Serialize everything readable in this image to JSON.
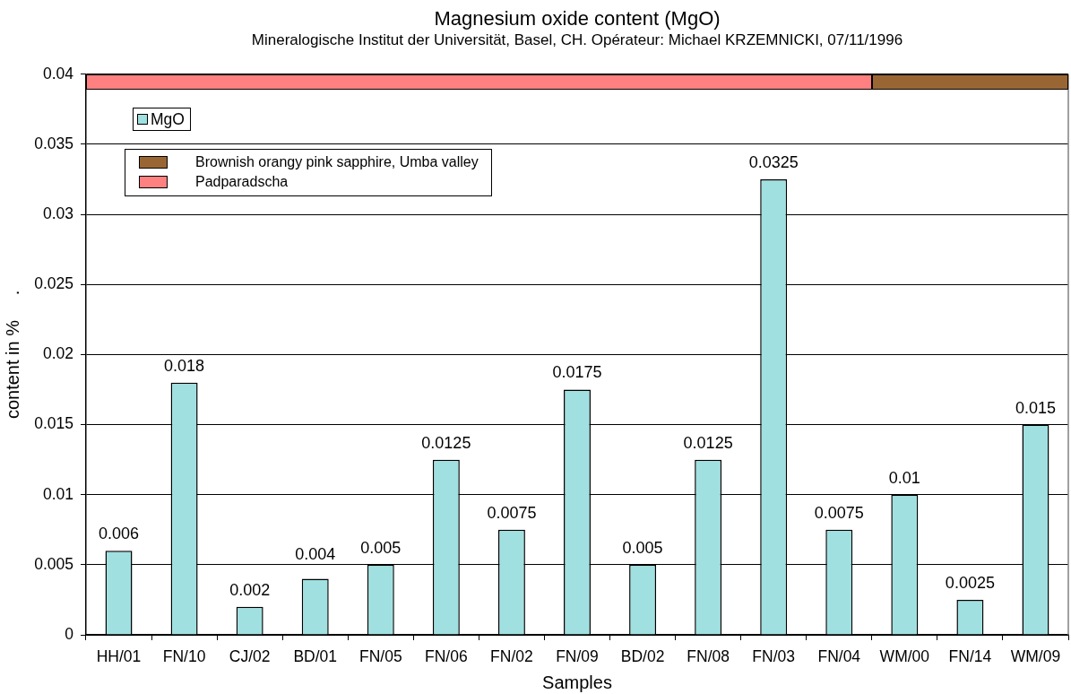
{
  "chart_data": {
    "type": "bar",
    "title": "Magnesium oxide content (MgO)",
    "subtitle": "Mineralogische Institut der Universität, Basel, CH. Opérateur: Michael KRZEMNICKI, 07/11/1996",
    "xlabel": "Samples",
    "ylabel": "content in %     .",
    "categories": [
      "HH/01",
      "FN/10",
      "CJ/02",
      "BD/01",
      "FN/05",
      "FN/06",
      "FN/02",
      "FN/09",
      "BD/02",
      "FN/08",
      "FN/03",
      "FN/04",
      "WM/00",
      "FN/14",
      "WM/09"
    ],
    "series": [
      {
        "name": "MgO",
        "color": "#a0e0e0",
        "values": [
          0.006,
          0.018,
          0.002,
          0.004,
          0.005,
          0.0125,
          0.0075,
          0.0175,
          0.005,
          0.0125,
          0.0325,
          0.0075,
          0.01,
          0.0025,
          0.015
        ]
      }
    ],
    "ylim": [
      0,
      0.04
    ],
    "yticks": [
      0,
      0.005,
      0.01,
      0.015,
      0.02,
      0.025,
      0.03,
      0.035,
      0.04
    ],
    "annotations": [
      "Brownish orangy pink sapphire, Umba valley",
      "Padparadscha"
    ],
    "data_labels": true,
    "grid": "y",
    "legend": "top left"
  }
}
